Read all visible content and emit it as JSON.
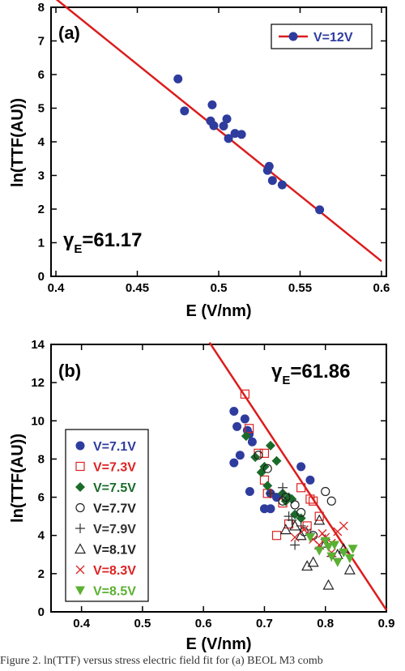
{
  "caption": "Figure 2. ln(TTF) versus stress electric field fit for (a) BEOL M3 comb",
  "chart_data": [
    {
      "type": "scatter",
      "panel_label": "(a)",
      "xlabel": "E (V/nm)",
      "ylabel": "ln(TTF(AU))",
      "xlim": [
        0.4,
        0.6
      ],
      "ylim": [
        0,
        8
      ],
      "xticks": [
        0.4,
        0.45,
        0.5,
        0.55,
        0.6
      ],
      "xtick_labels": [
        "0.4",
        "0.45",
        "0.5",
        "0.55",
        "0.6"
      ],
      "yticks": [
        0,
        1,
        2,
        3,
        4,
        5,
        6,
        7,
        8
      ],
      "annotation": {
        "gamma": "γ",
        "sub": "E",
        "value": "=61.17"
      },
      "fit_line": {
        "x": [
          0.4,
          0.6
        ],
        "y": [
          8.25,
          0.45
        ],
        "color": "#dd1c1c"
      },
      "series": [
        {
          "name": "V=12V",
          "marker": "circle",
          "color": "#2e3c9e",
          "x": [
            0.475,
            0.479,
            0.495,
            0.496,
            0.497,
            0.503,
            0.505,
            0.506,
            0.51,
            0.514,
            0.53,
            0.531,
            0.533,
            0.539,
            0.562
          ],
          "y": [
            5.87,
            4.92,
            4.62,
            5.1,
            4.48,
            4.47,
            4.68,
            4.1,
            4.25,
            4.22,
            3.15,
            3.27,
            2.85,
            2.72,
            1.98
          ]
        }
      ],
      "legend_position": "top-right",
      "grid": false
    },
    {
      "type": "scatter",
      "panel_label": "(b)",
      "xlabel": "E (V/nm)",
      "ylabel": "ln(TTF(AU))",
      "xlim": [
        0.35,
        0.9
      ],
      "ylim": [
        0,
        14
      ],
      "xticks": [
        0.4,
        0.5,
        0.6,
        0.7,
        0.8,
        0.9
      ],
      "xtick_labels": [
        "0.4",
        "0.5",
        "0.6",
        "0.7",
        "0.8",
        "0.9"
      ],
      "yticks": [
        0,
        2,
        4,
        6,
        8,
        10,
        12,
        14
      ],
      "annotation": {
        "gamma": "γ",
        "sub": "E",
        "value": "=61.86"
      },
      "fit_line": {
        "x": [
          0.61,
          0.9
        ],
        "y": [
          14.1,
          0.1
        ],
        "color": "#dd1c1c"
      },
      "series": [
        {
          "name": "V=7.1V",
          "marker": "circle",
          "color": "#2e3c9e",
          "x": [
            0.65,
            0.655,
            0.66,
            0.668,
            0.672,
            0.676,
            0.68,
            0.7,
            0.71,
            0.71,
            0.76,
            0.775,
            0.65,
            0.675,
            0.72
          ],
          "y": [
            10.5,
            9.7,
            8.2,
            10.1,
            9.5,
            6.3,
            8.9,
            5.4,
            5.4,
            6.2,
            7.6,
            6.9,
            7.8,
            9.3,
            6.0
          ]
        },
        {
          "name": "V=7.3V",
          "marker": "square",
          "color": "#dd2222",
          "x": [
            0.668,
            0.675,
            0.69,
            0.7,
            0.705,
            0.72,
            0.73,
            0.74,
            0.76,
            0.775,
            0.79,
            0.7,
            0.77,
            0.78
          ],
          "y": [
            11.4,
            9.6,
            8.3,
            6.9,
            6.2,
            4.0,
            5.7,
            4.6,
            6.5,
            5.9,
            5.0,
            8.3,
            4.5,
            5.8
          ]
        },
        {
          "name": "V=7.5V",
          "marker": "diamond",
          "color": "#1a6b2a",
          "x": [
            0.67,
            0.685,
            0.695,
            0.705,
            0.71,
            0.72,
            0.735,
            0.74,
            0.745,
            0.75,
            0.76,
            0.7,
            0.73
          ],
          "y": [
            9.2,
            8.1,
            7.3,
            6.6,
            8.7,
            7.9,
            5.8,
            6.0,
            5.9,
            5.1,
            4.9,
            7.6,
            6.2
          ]
        },
        {
          "name": "V=7.7V",
          "marker": "circle-open",
          "color": "#222222",
          "x": [
            0.69,
            0.705,
            0.73,
            0.735,
            0.75,
            0.76,
            0.765,
            0.78,
            0.8,
            0.81
          ],
          "y": [
            8.2,
            7.5,
            5.8,
            6.0,
            5.6,
            5.2,
            4.2,
            4.0,
            6.3,
            5.8
          ]
        },
        {
          "name": "V=7.9V",
          "marker": "plus",
          "color": "#333333",
          "x": [
            0.71,
            0.73,
            0.745,
            0.75,
            0.76,
            0.775,
            0.79,
            0.8,
            0.74,
            0.81
          ],
          "y": [
            6.2,
            6.5,
            4.8,
            3.5,
            4.5,
            4.1,
            3.3,
            3.8,
            5.0,
            2.9
          ]
        },
        {
          "name": "V=8.1V",
          "marker": "triangle-open",
          "color": "#222222",
          "x": [
            0.735,
            0.75,
            0.76,
            0.77,
            0.78,
            0.8,
            0.805,
            0.82,
            0.83,
            0.84,
            0.79
          ],
          "y": [
            4.3,
            4.5,
            4.0,
            2.4,
            2.6,
            3.6,
            1.4,
            3.0,
            3.3,
            2.2,
            4.8
          ]
        },
        {
          "name": "V=8.3V",
          "marker": "x",
          "color": "#dd2222",
          "x": [
            0.75,
            0.765,
            0.78,
            0.79,
            0.8,
            0.81,
            0.82,
            0.83,
            0.81,
            0.795
          ],
          "y": [
            3.9,
            4.3,
            3.8,
            3.5,
            3.9,
            3.1,
            4.2,
            4.5,
            3.6,
            4.1
          ]
        },
        {
          "name": "V=8.5V",
          "marker": "triangle-down",
          "color": "#5ab032",
          "x": [
            0.775,
            0.79,
            0.8,
            0.805,
            0.81,
            0.82,
            0.83,
            0.84,
            0.845,
            0.815
          ],
          "y": [
            3.9,
            3.2,
            3.7,
            3.4,
            2.9,
            2.6,
            3.1,
            2.8,
            3.3,
            3.5
          ]
        }
      ],
      "legend_position": "left",
      "grid": false
    }
  ]
}
